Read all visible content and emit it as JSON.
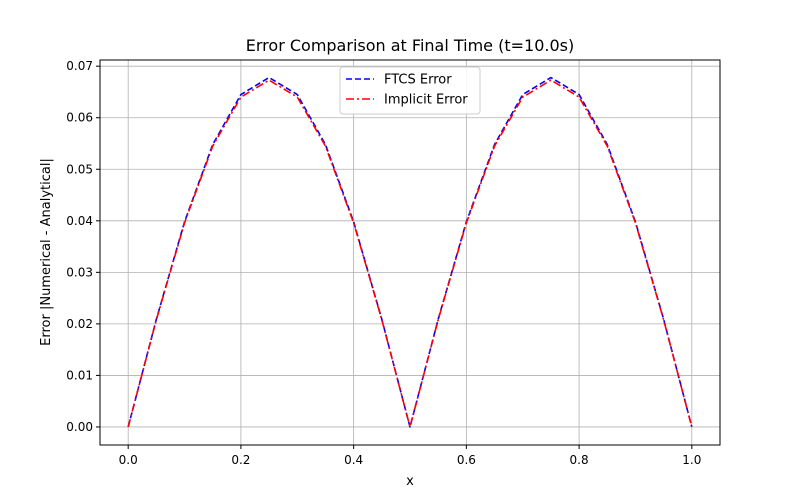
{
  "chart_data": {
    "type": "line",
    "title": "Error Comparison at Final Time (t=10.0s)",
    "xlabel": "x",
    "ylabel": "Error |Numerical - Analytical|",
    "xlim": [
      -0.05,
      1.05
    ],
    "ylim": [
      -0.0035,
      0.0712
    ],
    "xticks": [
      0.0,
      0.2,
      0.4,
      0.6,
      0.8,
      1.0
    ],
    "xtick_labels": [
      "0.0",
      "0.2",
      "0.4",
      "0.6",
      "0.8",
      "1.0"
    ],
    "yticks": [
      0.0,
      0.01,
      0.02,
      0.03,
      0.04,
      0.05,
      0.06,
      0.07
    ],
    "ytick_labels": [
      "0.00",
      "0.01",
      "0.02",
      "0.03",
      "0.04",
      "0.05",
      "0.06",
      "0.07"
    ],
    "grid": true,
    "legend_position": "upper center",
    "x": [
      0.0,
      0.05,
      0.1,
      0.15,
      0.2,
      0.25,
      0.3,
      0.35,
      0.4,
      0.45,
      0.5,
      0.55,
      0.6,
      0.65,
      0.7,
      0.75,
      0.8,
      0.85,
      0.9,
      0.95,
      1.0
    ],
    "series": [
      {
        "name": "FTCS Error",
        "color": "#0000ff",
        "style": "dashed",
        "values": [
          0.0,
          0.0209,
          0.0398,
          0.0548,
          0.0645,
          0.0678,
          0.0645,
          0.0548,
          0.0398,
          0.0209,
          0.0,
          0.0209,
          0.0398,
          0.0548,
          0.0645,
          0.0678,
          0.0645,
          0.0548,
          0.0398,
          0.0209,
          0.0
        ]
      },
      {
        "name": "Implicit Error",
        "color": "#ff0000",
        "style": "dashdot",
        "values": [
          0.0,
          0.0208,
          0.0396,
          0.0545,
          0.064,
          0.0673,
          0.064,
          0.0545,
          0.0396,
          0.0208,
          0.0,
          0.0208,
          0.0396,
          0.0545,
          0.064,
          0.0673,
          0.064,
          0.0545,
          0.0396,
          0.0208,
          0.0
        ]
      }
    ]
  }
}
